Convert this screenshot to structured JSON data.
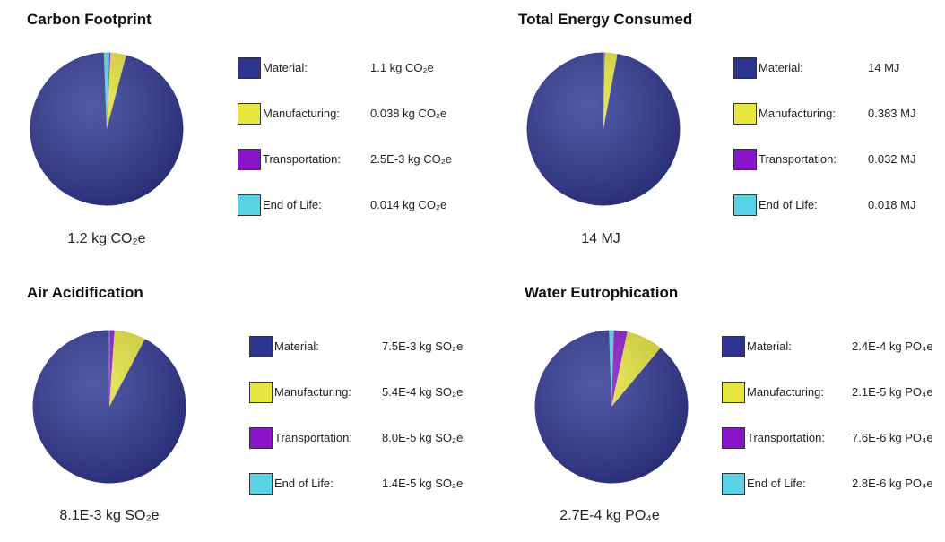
{
  "chart_data": [
    {
      "type": "pie",
      "title": "Carbon Footprint",
      "total_label": "1.2 kg CO₂e",
      "slices": [
        {
          "label": "Material:",
          "value_text": "1.1 kg CO₂e",
          "value": 1.1,
          "color": "#2d3591"
        },
        {
          "label": "Manufacturing:",
          "value_text": "0.038 kg CO₂e",
          "value": 0.038,
          "color": "#e6e63c"
        },
        {
          "label": "Transportation:",
          "value_text": "2.5E-3 kg CO₂e",
          "value": 0.0025,
          "color": "#8a14c8"
        },
        {
          "label": "End of Life:",
          "value_text": "0.014 kg CO₂e",
          "value": 0.014,
          "color": "#5ad2e6"
        }
      ]
    },
    {
      "type": "pie",
      "title": "Total Energy Consumed",
      "total_label": "14 MJ",
      "slices": [
        {
          "label": "Material:",
          "value_text": "14 MJ",
          "value": 14,
          "color": "#2d3591"
        },
        {
          "label": "Manufacturing:",
          "value_text": "0.383 MJ",
          "value": 0.383,
          "color": "#e6e63c"
        },
        {
          "label": "Transportation:",
          "value_text": "0.032 MJ",
          "value": 0.032,
          "color": "#8a14c8"
        },
        {
          "label": "End of Life:",
          "value_text": "0.018 MJ",
          "value": 0.018,
          "color": "#5ad2e6"
        }
      ]
    },
    {
      "type": "pie",
      "title": "Air Acidification",
      "total_label": "8.1E-3 kg SO₂e",
      "slices": [
        {
          "label": "Material:",
          "value_text": "7.5E-3 kg SO₂e",
          "value": 0.0075,
          "color": "#2d3591"
        },
        {
          "label": "Manufacturing:",
          "value_text": "5.4E-4 kg SO₂e",
          "value": 0.00054,
          "color": "#e6e63c"
        },
        {
          "label": "Transportation:",
          "value_text": "8.0E-5 kg SO₂e",
          "value": 8e-05,
          "color": "#8a14c8"
        },
        {
          "label": "End of Life:",
          "value_text": "1.4E-5 kg SO₂e",
          "value": 1.4e-05,
          "color": "#5ad2e6"
        }
      ]
    },
    {
      "type": "pie",
      "title": "Water Eutrophication",
      "total_label": "2.7E-4 kg PO₄e",
      "slices": [
        {
          "label": "Material:",
          "value_text": "2.4E-4 kg PO₄e",
          "value": 0.00024,
          "color": "#2d3591"
        },
        {
          "label": "Manufacturing:",
          "value_text": "2.1E-5 kg PO₄e",
          "value": 2.1e-05,
          "color": "#e6e63c"
        },
        {
          "label": "Transportation:",
          "value_text": "7.6E-6 kg PO₄e",
          "value": 7.6e-06,
          "color": "#8a14c8"
        },
        {
          "label": "End of Life:",
          "value_text": "2.8E-6 kg PO₄e",
          "value": 2.8e-06,
          "color": "#5ad2e6"
        }
      ]
    }
  ]
}
